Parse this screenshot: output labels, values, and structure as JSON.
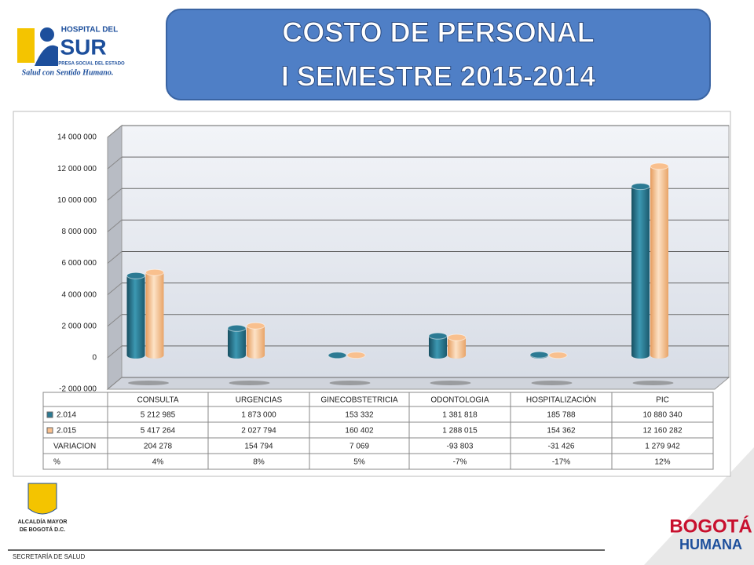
{
  "header": {
    "title_lines": [
      "COSTO DE PERSONAL",
      "I SEMESTRE 2015-2014"
    ],
    "logo_hospital": [
      "HOSPITAL DEL",
      "SUR",
      "EMPRESA SOCIAL DEL ESTADO",
      "Salud con Sentido Humano."
    ]
  },
  "footer": {
    "alcaldia": [
      "ALCALDÍA MAYOR",
      "DE BOGOTÁ D.C."
    ],
    "secretaria": "SECRETARÍA DE SALUD",
    "bogota": [
      "BOGOTÁ",
      "HUMANA"
    ]
  },
  "chart_data": {
    "type": "bar",
    "categories": [
      "CONSULTA",
      "URGENCIAS",
      "GINECOBSTETRICIA",
      "ODONTOLOGIA",
      "HOSPITALIZACIÓN",
      "PIC"
    ],
    "series": [
      {
        "name": "2.014",
        "color": "#2c7a93",
        "values": [
          5212985,
          1873000,
          153332,
          1381818,
          185788,
          10880340
        ],
        "value_labels": [
          "5 212 985",
          "1 873 000",
          "153 332",
          "1 381 818",
          "185 788",
          "10 880 340"
        ]
      },
      {
        "name": "2.015",
        "color": "#f9c08e",
        "values": [
          5417264,
          2027794,
          160402,
          1288015,
          154362,
          12160282
        ],
        "value_labels": [
          "5 417 264",
          "2 027 794",
          "160 402",
          "1 288 015",
          "154 362",
          "12 160 282"
        ]
      }
    ],
    "table_rows": [
      {
        "name": "VARIACION",
        "values": [
          204278,
          154794,
          7069,
          -93803,
          -31426,
          1279942
        ],
        "value_labels": [
          "204 278",
          "154 794",
          "7 069",
          "-93 803",
          "-31 426",
          "1 279 942"
        ]
      },
      {
        "name": "%",
        "values": [
          4,
          8,
          5,
          -7,
          -17,
          12
        ],
        "value_labels": [
          "4%",
          "8%",
          "5%",
          "-7%",
          "-17%",
          "12%"
        ]
      }
    ],
    "ylim": [
      -2000000,
      14000000
    ],
    "yticks": [
      {
        "value": -2000000,
        "label": "-2 000 000"
      },
      {
        "value": 0,
        "label": "0"
      },
      {
        "value": 2000000,
        "label": "2 000 000"
      },
      {
        "value": 4000000,
        "label": "4 000 000"
      },
      {
        "value": 6000000,
        "label": "6 000 000"
      },
      {
        "value": 8000000,
        "label": "8 000 000"
      },
      {
        "value": 10000000,
        "label": "10 000 000"
      },
      {
        "value": 12000000,
        "label": "12 000 000"
      },
      {
        "value": 14000000,
        "label": "14 000 000"
      }
    ],
    "grid": true
  }
}
